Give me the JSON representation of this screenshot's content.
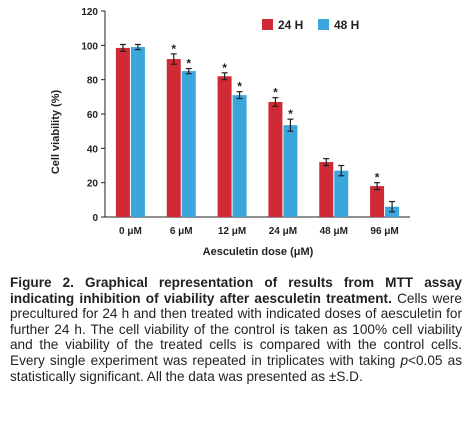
{
  "chart_data": {
    "type": "bar",
    "categories": [
      "0 μM",
      "6 μM",
      "12 μM",
      "24 μM",
      "48 μM",
      "96 μM"
    ],
    "series": [
      {
        "name": "24 H",
        "color": "#cf2a35",
        "values": [
          98.5,
          92,
          82,
          67,
          32,
          18
        ],
        "errors": [
          2,
          3,
          2,
          2.5,
          2,
          2
        ],
        "significant": [
          false,
          true,
          true,
          true,
          false,
          true
        ]
      },
      {
        "name": "48 H",
        "color": "#3aa6dc",
        "values": [
          99,
          85,
          71,
          53.5,
          27,
          6
        ],
        "errors": [
          1.5,
          1.5,
          2,
          3.5,
          3,
          3
        ],
        "significant": [
          false,
          true,
          true,
          true,
          false,
          false
        ]
      }
    ],
    "xlabel": "Aesculetin dose (μM)",
    "ylabel": "Cell viability (%)",
    "ylim": [
      0,
      120
    ],
    "yticks": [
      0,
      20,
      40,
      60,
      80,
      100,
      120
    ],
    "legend_position": "top-right",
    "grid": false,
    "significance_marker": "*"
  },
  "caption": {
    "title": "Figure 2. Graphical representation of results from MTT assay indicating inhibition of viability after aesculetin treatment.",
    "body_pre": "Cells were precultured for 24 h and then treated with indicated doses of aesculetin for further 24 h. The cell viability of the control is taken as 100% cell viability and the viability of the treated cells is compared with the control cells. Every single experiment was repeated in triplicates with taking ",
    "body_p": "p",
    "body_post": "<0.05 as statistically significant. All the data was presented as ±S.D."
  }
}
